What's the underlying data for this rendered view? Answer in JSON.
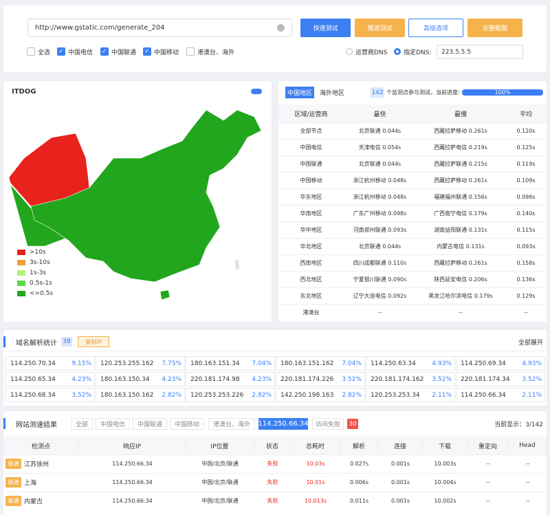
{
  "toolbar": {
    "url": "http://www.gstatic.com/generate_204",
    "buttons": [
      "快速测试",
      "慢速测试",
      "高级选项",
      "完整截图"
    ],
    "checkboxes": [
      {
        "label": "全选",
        "checked": false
      },
      {
        "label": "中国电信",
        "checked": true
      },
      {
        "label": "中国联通",
        "checked": true
      },
      {
        "label": "中国移动",
        "checked": true
      },
      {
        "label": "港澳台、海外",
        "checked": false
      }
    ],
    "dns_options": [
      {
        "label": "运营商DNS",
        "selected": false
      },
      {
        "label": "指定DNS:",
        "selected": true
      }
    ],
    "dns": "223.5.5.5"
  },
  "map": {
    "logo": "ITDOG",
    "legend": [
      {
        "label": ">10s",
        "color": "#e8221c"
      },
      {
        "label": "3s-10s",
        "color": "#f39c32"
      },
      {
        "label": "1s-3s",
        "color": "#b6f07a"
      },
      {
        "label": "0.5s-1s",
        "color": "#5bd84a"
      },
      {
        "label": "<=0.5s",
        "color": "#22a61d"
      }
    ]
  },
  "stats": {
    "tabs": [
      "中国地区",
      "海外地区"
    ],
    "count": "142",
    "count_text": "个监测点参与测试，当前进度:",
    "progress": "100%",
    "headers": [
      "区域/运营商",
      "最快",
      "最慢",
      "平均"
    ],
    "rows": [
      [
        "全部节点",
        "北京联通 0.044s",
        "西藏拉萨移动 0.261s",
        "0.120s"
      ],
      [
        "中国电信",
        "天津电信 0.054s",
        "西藏拉萨电信 0.219s",
        "0.125s"
      ],
      [
        "中国联通",
        "北京联通 0.044s",
        "西藏拉萨联通 0.215s",
        "0.119s"
      ],
      [
        "中国移动",
        "浙江杭州移动 0.048s",
        "西藏拉萨移动 0.261s",
        "0.109s"
      ],
      [
        "华东地区",
        "浙江杭州移动 0.048s",
        "福建福州联通 0.156s",
        "0.096s"
      ],
      [
        "华南地区",
        "广东广州移动 0.098s",
        "广西南宁电信 0.179s",
        "0.140s"
      ],
      [
        "华中地区",
        "河南郑州联通 0.093s",
        "湖南益阳联通 0.131s",
        "0.115s"
      ],
      [
        "华北地区",
        "北京联通 0.044s",
        "内蒙古电信 0.131s",
        "0.093s"
      ],
      [
        "西南地区",
        "四川成都联通 0.110s",
        "西藏拉萨移动 0.261s",
        "0.158s"
      ],
      [
        "西北地区",
        "宁夏银川联通 0.090s",
        "陕西延安电信 0.206s",
        "0.136s"
      ],
      [
        "东北地区",
        "辽宁大连电信 0.092s",
        "黑龙江哈尔滨电信 0.179s",
        "0.129s"
      ],
      [
        "港澳台",
        "--",
        "--",
        "--"
      ]
    ]
  },
  "dns_stats": {
    "title": "域名解析统计",
    "count": "38",
    "copy": "复制IP",
    "expand": "全部展开",
    "items": [
      [
        "114.250.70.34",
        "9.15%"
      ],
      [
        "120.253.255.162",
        "7.75%"
      ],
      [
        "180.163.151.34",
        "7.04%"
      ],
      [
        "180.163.151.162",
        "7.04%"
      ],
      [
        "114.250.63.34",
        "4.93%"
      ],
      [
        "114.250.69.34",
        "4.93%"
      ],
      [
        "114.250.65.34",
        "4.23%"
      ],
      [
        "180.163.150.34",
        "4.23%"
      ],
      [
        "220.181.174.98",
        "4.23%"
      ],
      [
        "220.181.174.226",
        "3.52%"
      ],
      [
        "220.181.174.162",
        "3.52%"
      ],
      [
        "220.181.174.34",
        "3.52%"
      ],
      [
        "114.250.68.34",
        "3.52%"
      ],
      [
        "180.163.150.162",
        "2.82%"
      ],
      [
        "120.253.253.226",
        "2.82%"
      ],
      [
        "142.250.198.163",
        "2.82%"
      ],
      [
        "120.253.253.34",
        "2.11%"
      ],
      [
        "114.250.66.34",
        "2.11%"
      ]
    ]
  },
  "results": {
    "title": "网站测速结果",
    "filters": [
      "全部",
      "中国电信",
      "中国联通",
      "中国移动",
      "港澳台、海外",
      "114.250.66.34",
      "访问失败"
    ],
    "fail_count": "30",
    "showing": "当前显示：3/142",
    "headers": [
      "检测点",
      "响应IP",
      "IP位置",
      "状态",
      "总耗时",
      "解析",
      "连接",
      "下载",
      "重定向",
      "Head"
    ],
    "rows": [
      [
        [
          "联通",
          "江苏徐州"
        ],
        "114.250.66.34",
        "中国/北京/联通",
        "失败",
        "10.03s",
        "0.027s",
        "0.001s",
        "10.003s",
        "--",
        "--"
      ],
      [
        [
          "联通",
          "上海"
        ],
        "114.250.66.34",
        "中国/北京/联通",
        "失败",
        "10.01s",
        "0.006s",
        "0.001s",
        "10.004s",
        "--",
        "--"
      ],
      [
        [
          "联通",
          "内蒙古"
        ],
        "114.250.66.34",
        "中国/北京/联通",
        "失败",
        "10.013s",
        "0.011s",
        "0.001s",
        "10.002s",
        "--",
        "--"
      ]
    ]
  }
}
